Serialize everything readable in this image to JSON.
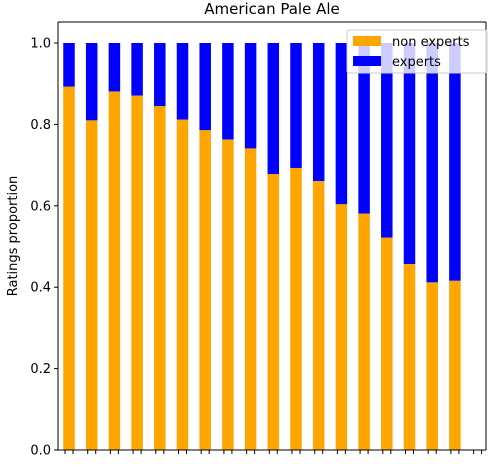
{
  "chart_data": {
    "type": "bar",
    "stacked": true,
    "title": "American Pale Ale",
    "xlabel": "",
    "ylabel": "Ratings proportion",
    "ylim": [
      0,
      1.0
    ],
    "yticks": [
      0.0,
      0.2,
      0.4,
      0.6,
      0.8,
      1.0
    ],
    "ytick_labels": [
      "0.0",
      "0.2",
      "0.4",
      "0.6",
      "0.8",
      "1.0"
    ],
    "grid": false,
    "legend": "top-right",
    "series": [
      {
        "name": "non experts",
        "color": "#ffa500",
        "values": [
          0.893,
          0.81,
          0.881,
          0.871,
          0.845,
          0.812,
          0.786,
          0.763,
          0.741,
          0.678,
          0.693,
          0.661,
          0.604,
          0.581,
          0.522,
          0.457,
          0.412,
          0.416
        ]
      },
      {
        "name": "experts",
        "color": "#0000ff",
        "values": [
          0.107,
          0.19,
          0.119,
          0.129,
          0.155,
          0.188,
          0.214,
          0.237,
          0.259,
          0.322,
          0.307,
          0.339,
          0.396,
          0.419,
          0.478,
          0.543,
          0.588,
          0.584
        ]
      }
    ]
  }
}
